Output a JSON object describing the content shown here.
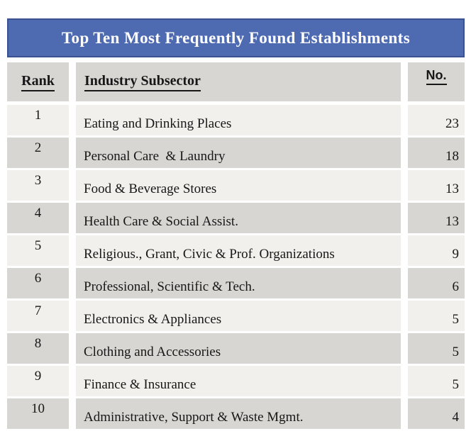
{
  "chart_data": {
    "type": "table",
    "title": "Top Ten Most Frequently Found Establishments",
    "columns": {
      "rank": "Rank",
      "industry": "Industry Subsector",
      "count": "No."
    },
    "rows": [
      {
        "rank": "1",
        "industry": "Eating and Drinking Places",
        "count": "23"
      },
      {
        "rank": "2",
        "industry": "Personal Care  & Laundry",
        "count": "18"
      },
      {
        "rank": "3",
        "industry": "Food & Beverage Stores",
        "count": "13"
      },
      {
        "rank": "4",
        "industry": "Health Care & Social Assist.",
        "count": "13"
      },
      {
        "rank": "5",
        "industry": "Religious., Grant, Civic & Prof. Organizations",
        "count": "9"
      },
      {
        "rank": "6",
        "industry": "Professional, Scientific & Tech.",
        "count": "6"
      },
      {
        "rank": "7",
        "industry": "Electronics & Appliances",
        "count": "5"
      },
      {
        "rank": "8",
        "industry": "Clothing and Accessories",
        "count": "5"
      },
      {
        "rank": "9",
        "industry": "Finance & Insurance",
        "count": "5"
      },
      {
        "rank": "10",
        "industry": "Administrative, Support & Waste Mgmt.",
        "count": "4"
      }
    ],
    "layout": {
      "banded_rows": true,
      "count_column_alignment": "right",
      "rank_column_alignment": "center"
    }
  },
  "colors": {
    "title_bar_bg": "#4e6bb2",
    "title_bar_border": "#3a5390",
    "title_text": "#ffffff",
    "band_dark": "#d8d6d3",
    "band_light": "#f1f0ed",
    "text": "#171717",
    "page_bg": "#ffffff"
  }
}
